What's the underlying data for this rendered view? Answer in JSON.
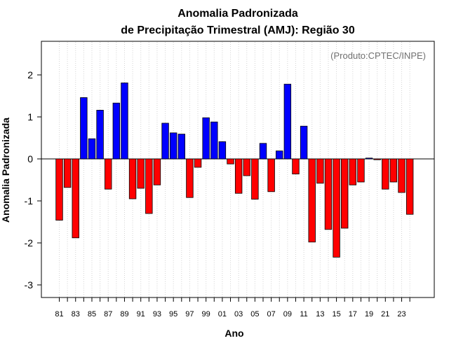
{
  "chart_data": {
    "type": "bar",
    "title_line1": "Anomalia Padronizada",
    "title_line2": "de Precipitação Trimestral (AMJ): Região 30",
    "credit": "(Produto:CPTEC/INPE)",
    "xlabel": "Ano",
    "ylabel": "Anomalia Padronizada",
    "ylim": [
      -3.3,
      2.8
    ],
    "yticks": [
      2,
      1,
      0,
      -1,
      -2,
      -3
    ],
    "ytick_labels": [
      "2",
      "1",
      "0",
      "-1",
      "-2",
      "-3"
    ],
    "xtick_labels": [
      "81",
      "83",
      "85",
      "87",
      "89",
      "91",
      "93",
      "95",
      "97",
      "99",
      "01",
      "03",
      "05",
      "07",
      "09",
      "11",
      "13",
      "15",
      "17",
      "19",
      "21",
      "23"
    ],
    "grid": true,
    "colors": {
      "positive": "#0000ff",
      "negative": "#ff0000",
      "border": "#000000",
      "grid": "#d3d3d3"
    },
    "categories": [
      "1981",
      "1982",
      "1983",
      "1984",
      "1985",
      "1986",
      "1987",
      "1988",
      "1989",
      "1990",
      "1991",
      "1992",
      "1993",
      "1994",
      "1995",
      "1996",
      "1997",
      "1998",
      "1999",
      "2000",
      "2001",
      "2002",
      "2003",
      "2004",
      "2005",
      "2006",
      "2007",
      "2008",
      "2009",
      "2010",
      "2011",
      "2012",
      "2013",
      "2014",
      "2015",
      "2016",
      "2017",
      "2018",
      "2019",
      "2020",
      "2021",
      "2022",
      "2023",
      "2024"
    ],
    "values": [
      -1.46,
      -0.68,
      -1.88,
      1.46,
      0.48,
      1.16,
      -0.72,
      1.33,
      1.81,
      -0.95,
      -0.7,
      -1.3,
      -0.62,
      0.85,
      0.62,
      0.59,
      -0.92,
      -0.2,
      0.98,
      0.88,
      0.41,
      -0.12,
      -0.82,
      -0.4,
      -0.96,
      0.37,
      -0.78,
      0.19,
      1.78,
      -0.36,
      0.78,
      -1.98,
      -0.58,
      -1.68,
      -2.34,
      -1.65,
      -0.62,
      -0.55,
      0.02,
      -0.02,
      -0.72,
      -0.55,
      -0.8,
      -1.32
    ]
  }
}
